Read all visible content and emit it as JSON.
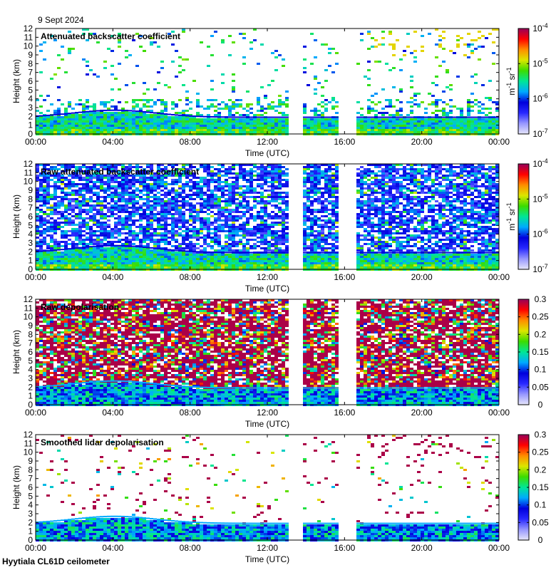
{
  "figure": {
    "date": "9 Sept 2024",
    "footer": "Hyytiala CL61D ceilometer"
  },
  "chart_data": [
    {
      "type": "heatmap",
      "title": "Attenuated backscatter coefficient",
      "xlabel": "Time (UTC)",
      "ylabel": "Height (km)",
      "xticks": [
        "00:00",
        "04:00",
        "08:00",
        "12:00",
        "16:00",
        "20:00",
        "00:00"
      ],
      "yticks": [
        "0",
        "1",
        "2",
        "3",
        "4",
        "5",
        "6",
        "7",
        "8",
        "9",
        "10",
        "11",
        "12"
      ],
      "xlim": [
        0,
        24
      ],
      "ylim": [
        0,
        12
      ],
      "data_gaps_hours": [
        [
          13.0,
          13.75
        ],
        [
          15.6,
          16.55
        ]
      ],
      "colorbar": {
        "scale": "log",
        "range": [
          1e-07,
          0.0001
        ],
        "ticks": [
          "10",
          "10",
          "10",
          "10"
        ],
        "tick_exponents": [
          "-7",
          "-6",
          "-5",
          "-4"
        ],
        "unit_label": "m",
        "unit_exponent_1": "-1",
        "unit_mid": " sr",
        "unit_exponent_2": "-1"
      }
    },
    {
      "type": "heatmap",
      "title": "Raw attenuated backscatter coefficient",
      "xlabel": "Time (UTC)",
      "ylabel": "Height (km)",
      "xticks": [
        "00:00",
        "04:00",
        "08:00",
        "12:00",
        "16:00",
        "20:00",
        "00:00"
      ],
      "yticks": [
        "0",
        "1",
        "2",
        "3",
        "4",
        "5",
        "6",
        "7",
        "8",
        "9",
        "10",
        "11",
        "12"
      ],
      "xlim": [
        0,
        24
      ],
      "ylim": [
        0,
        12
      ],
      "data_gaps_hours": [
        [
          13.0,
          13.75
        ],
        [
          15.6,
          16.55
        ]
      ],
      "colorbar": {
        "scale": "log",
        "range": [
          1e-07,
          0.0001
        ],
        "ticks": [
          "10",
          "10",
          "10",
          "10"
        ],
        "tick_exponents": [
          "-7",
          "-6",
          "-5",
          "-4"
        ],
        "unit_label": "m",
        "unit_exponent_1": "-1",
        "unit_mid": " sr",
        "unit_exponent_2": "-1"
      }
    },
    {
      "type": "heatmap",
      "title": "Raw depolarisation",
      "xlabel": "Time (UTC)",
      "ylabel": "Height (km)",
      "xticks": [
        "00:00",
        "04:00",
        "08:00",
        "12:00",
        "16:00",
        "20:00",
        "00:00"
      ],
      "yticks": [
        "0",
        "1",
        "2",
        "3",
        "4",
        "5",
        "6",
        "7",
        "8",
        "9",
        "10",
        "11",
        "12"
      ],
      "xlim": [
        0,
        24
      ],
      "ylim": [
        0,
        12
      ],
      "data_gaps_hours": [
        [
          13.0,
          13.75
        ],
        [
          15.6,
          16.55
        ]
      ],
      "colorbar": {
        "scale": "linear",
        "range": [
          0,
          0.3
        ],
        "ticks": [
          "0",
          "0.05",
          "0.1",
          "0.15",
          "0.2",
          "0.25",
          "0.3"
        ]
      }
    },
    {
      "type": "heatmap",
      "title": "Smoothed lidar depolarisation",
      "xlabel": "Time (UTC)",
      "ylabel": "Height (km)",
      "xticks": [
        "00:00",
        "04:00",
        "08:00",
        "12:00",
        "16:00",
        "20:00",
        "00:00"
      ],
      "yticks": [
        "0",
        "1",
        "2",
        "3",
        "4",
        "5",
        "6",
        "7",
        "8",
        "9",
        "10",
        "11",
        "12"
      ],
      "xlim": [
        0,
        24
      ],
      "ylim": [
        0,
        12
      ],
      "data_gaps_hours": [
        [
          13.0,
          13.75
        ],
        [
          15.6,
          16.55
        ]
      ],
      "colorbar": {
        "scale": "linear",
        "range": [
          0,
          0.3
        ],
        "ticks": [
          "0",
          "0.05",
          "0.1",
          "0.15",
          "0.2",
          "0.25",
          "0.3"
        ]
      }
    }
  ]
}
